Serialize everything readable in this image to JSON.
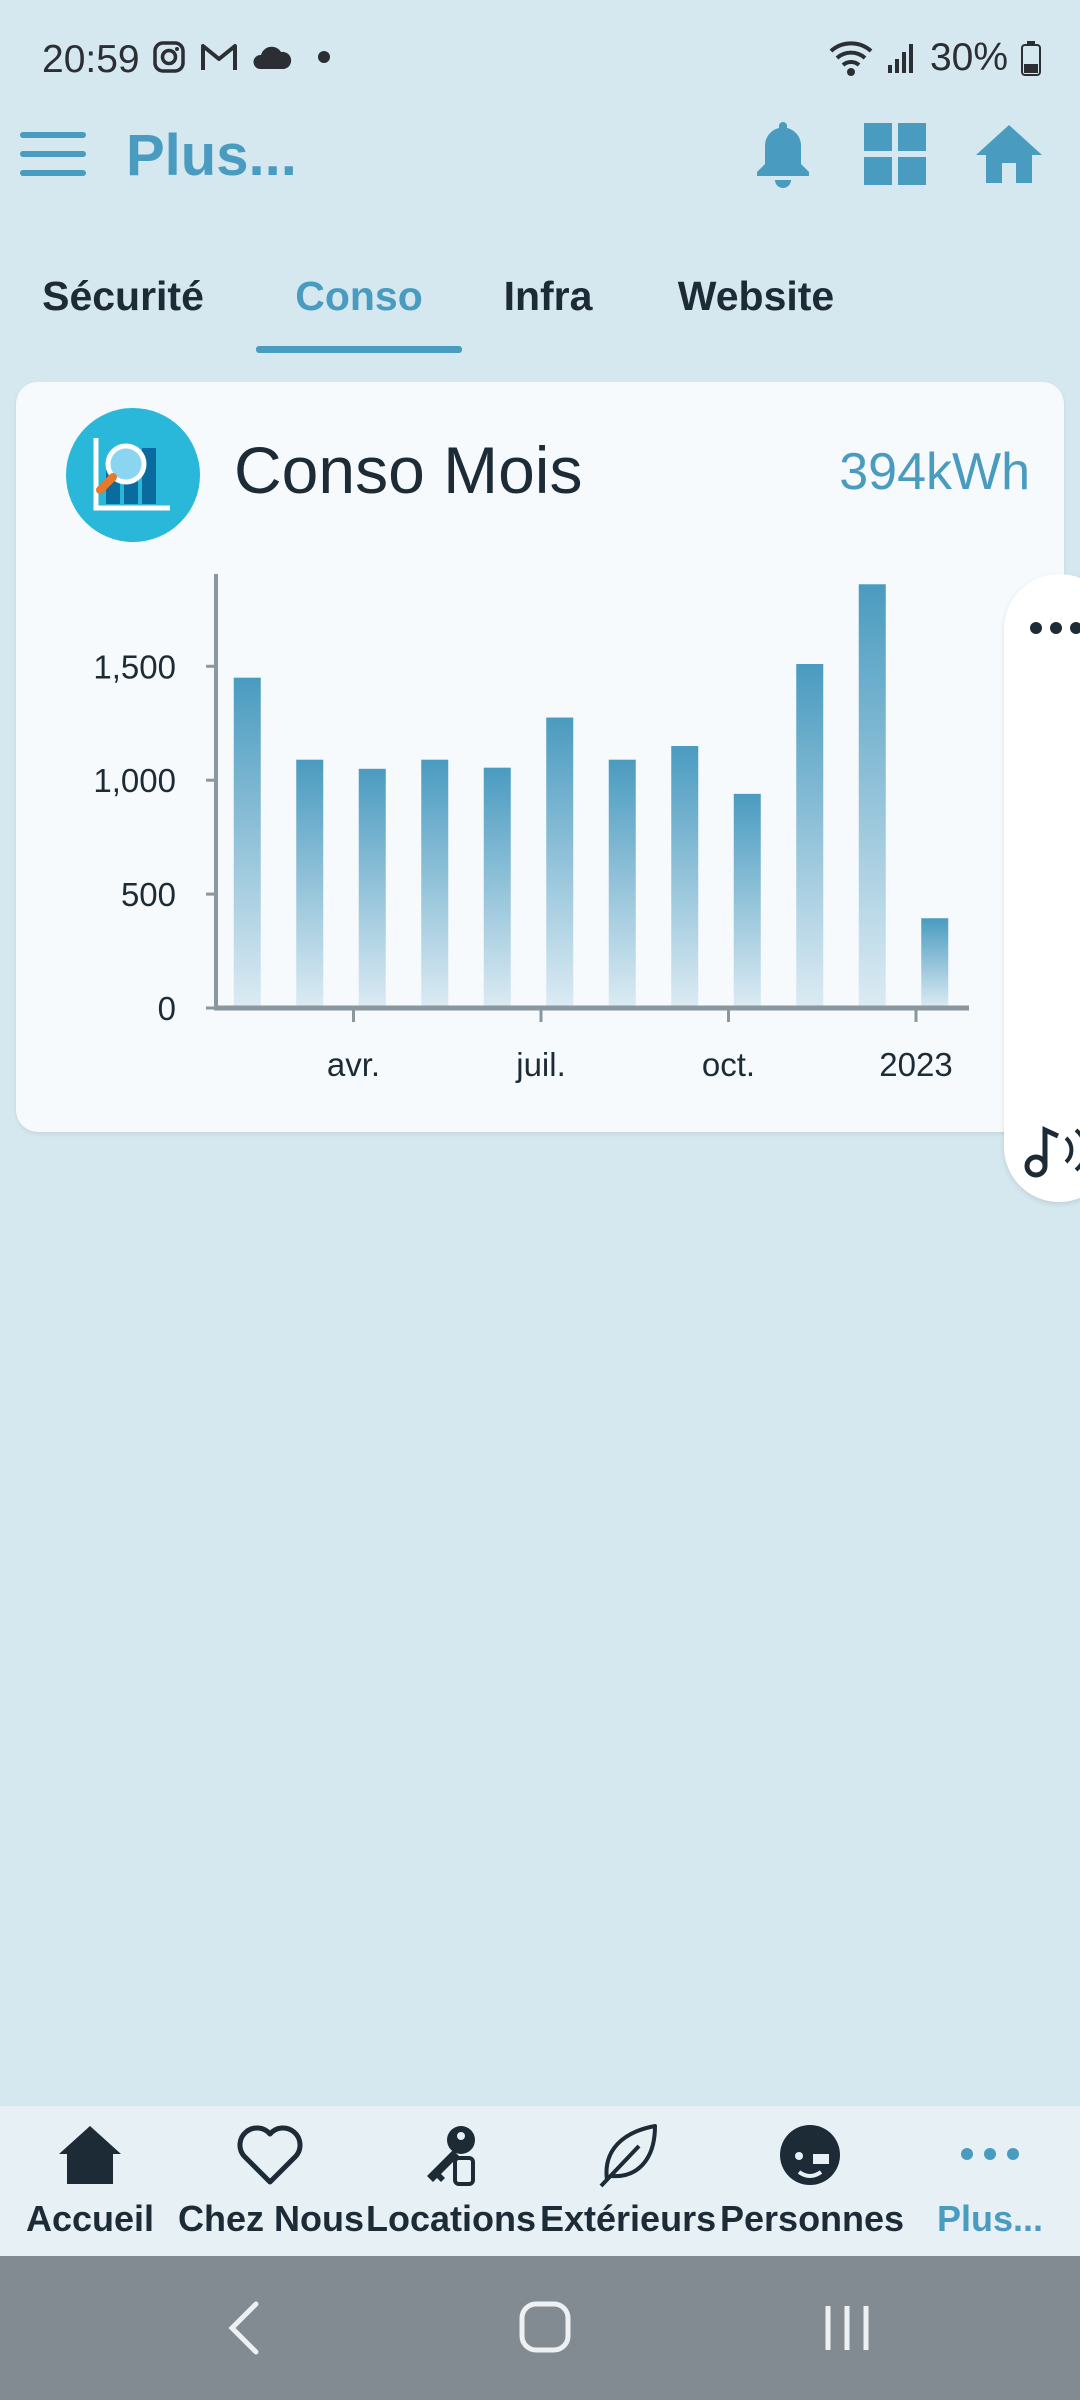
{
  "status_bar": {
    "time": "20:59",
    "battery": "30%"
  },
  "app_bar": {
    "title": "Plus..."
  },
  "tabs": [
    {
      "label": "Sécurité"
    },
    {
      "label": "Conso"
    },
    {
      "label": "Infra"
    },
    {
      "label": "Website"
    }
  ],
  "active_tab": "Conso",
  "card": {
    "title": "Conso Mois",
    "value": "394kWh"
  },
  "chart_data": {
    "type": "bar",
    "x": [
      "2022-02",
      "2022-03",
      "2022-04",
      "2022-05",
      "2022-06",
      "2022-07",
      "2022-08",
      "2022-09",
      "2022-10",
      "2022-11",
      "2022-12",
      "2023-01"
    ],
    "values": [
      1450,
      1090,
      1050,
      1090,
      1055,
      1275,
      1090,
      1150,
      940,
      1510,
      1860,
      394
    ],
    "unit": "kWh",
    "ylim": [
      0,
      1870
    ],
    "yticks": [
      "0",
      "500",
      "1,000",
      "1,500"
    ],
    "ytick_values": [
      0,
      500,
      1000,
      1500
    ],
    "xtick_labels": [
      "avr.",
      "juil.",
      "oct.",
      "2023"
    ],
    "xtick_positions": [
      "2022-04",
      "2022-07",
      "2022-10",
      "2023-01"
    ],
    "grid": false,
    "bar_color": "#4a9bc0"
  },
  "bottom_nav": [
    {
      "label": "Accueil",
      "icon": "home-icon"
    },
    {
      "label": "Chez Nous",
      "icon": "heart-icon"
    },
    {
      "label": "Locations",
      "icon": "keys-icon"
    },
    {
      "label": "Extérieurs",
      "icon": "leaf-icon"
    },
    {
      "label": "Personnes",
      "icon": "person-icon"
    },
    {
      "label": "Plus...",
      "icon": "more-icon"
    }
  ],
  "colors": {
    "accent": "#4a9bc0",
    "background": "#d5e7ef",
    "card": "#f6fafc",
    "text": "#1d2b36"
  }
}
